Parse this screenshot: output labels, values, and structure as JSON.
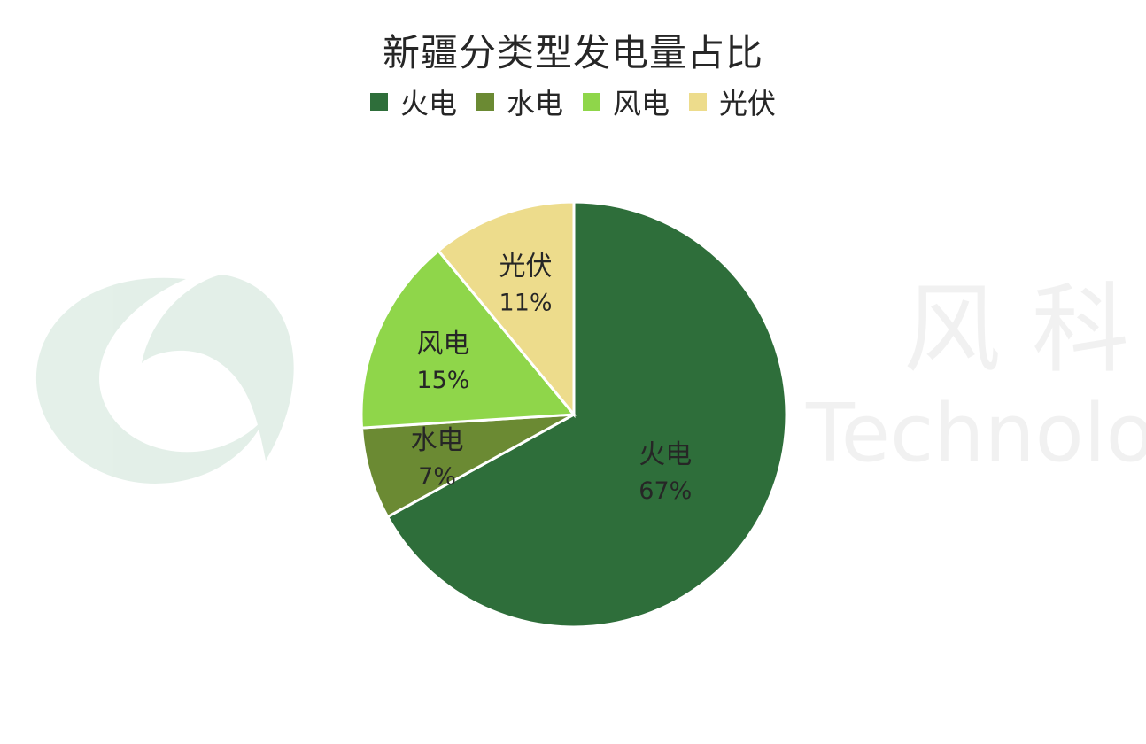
{
  "watermark": {
    "text_cn": "风 科 技",
    "text_en": "Technology"
  },
  "chart_data": {
    "type": "pie",
    "title": "新疆分类型发电量占比",
    "categories": [
      "火电",
      "水电",
      "风电",
      "光伏"
    ],
    "values": [
      67,
      7,
      15,
      11
    ],
    "data_labels": [
      "67%",
      "7%",
      "15%",
      "11%"
    ],
    "colors": [
      "#2e6e3a",
      "#6b8a33",
      "#8fd64a",
      "#eddc8c"
    ],
    "legend_position": "top",
    "start_angle": "12 o'clock, clockwise"
  }
}
